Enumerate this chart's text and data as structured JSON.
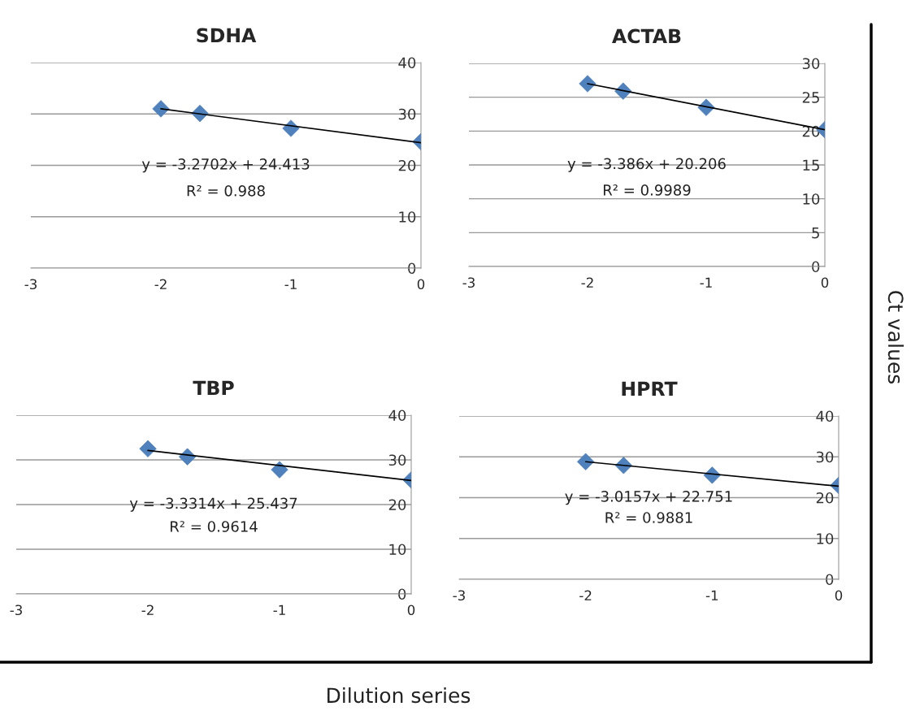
{
  "chart_data": [
    {
      "type": "scatter",
      "title": "SDHA",
      "xlim": [
        -3,
        0
      ],
      "xticks": [
        -3,
        -2,
        -1,
        0
      ],
      "ylim": [
        0,
        40
      ],
      "yticks": [
        0,
        10,
        20,
        30,
        40
      ],
      "grid": "y",
      "marker": "diamond",
      "annotations": [
        "y = -3.2702x + 24.413",
        "R² = 0.988"
      ],
      "series": [
        {
          "color": "#4f81bd",
          "x": [
            -2,
            -1.7,
            -1,
            0
          ],
          "values": [
            31.0,
            30.1,
            27.2,
            24.6
          ]
        },
        {
          "type": "line",
          "color": "#000000",
          "marker": "none",
          "x": [
            -2,
            0
          ],
          "values": [
            31.0,
            24.4
          ]
        }
      ]
    },
    {
      "type": "scatter",
      "title": "ACTAB",
      "xlim": [
        -3,
        0
      ],
      "xticks": [
        -3,
        -2,
        -1,
        0
      ],
      "ylim": [
        0,
        30
      ],
      "yticks": [
        0,
        5,
        10,
        15,
        20,
        25,
        30
      ],
      "grid": "y",
      "marker": "diamond",
      "annotations": [
        "y = -3.386x + 20.206",
        "R² = 0.9989"
      ],
      "series": [
        {
          "color": "#4f81bd",
          "x": [
            -2,
            -1.7,
            -1,
            0
          ],
          "values": [
            27.0,
            25.9,
            23.5,
            20.2
          ]
        },
        {
          "type": "line",
          "color": "#000000",
          "marker": "none",
          "x": [
            -2,
            0
          ],
          "values": [
            27.0,
            20.2
          ]
        }
      ]
    },
    {
      "type": "scatter",
      "title": "TBP",
      "xlim": [
        -3,
        0
      ],
      "xticks": [
        -3,
        -2,
        -1,
        0
      ],
      "ylim": [
        0,
        40
      ],
      "yticks": [
        0,
        10,
        20,
        30,
        40
      ],
      "grid": "y",
      "marker": "diamond",
      "annotations": [
        "y = -3.3314x + 25.437",
        "R² = 0.9614"
      ],
      "series": [
        {
          "color": "#4f81bd",
          "x": [
            -2,
            -1.7,
            -1,
            0
          ],
          "values": [
            32.5,
            30.7,
            27.8,
            25.5
          ]
        },
        {
          "type": "line",
          "color": "#000000",
          "marker": "none",
          "x": [
            -2,
            0
          ],
          "values": [
            32.1,
            25.4
          ]
        }
      ]
    },
    {
      "type": "scatter",
      "title": "HPRT",
      "xlabel": "Dilution series",
      "ylabel": "Ct values",
      "xlim": [
        -3,
        0
      ],
      "xticks": [
        -3,
        -2,
        -1,
        0
      ],
      "ylim": [
        0,
        40
      ],
      "yticks": [
        0,
        10,
        20,
        30,
        40
      ],
      "grid": "y",
      "marker": "diamond",
      "annotations": [
        "y = -3.0157x + 22.751",
        "R² = 0.9881"
      ],
      "series": [
        {
          "color": "#4f81bd",
          "x": [
            -2,
            -1.7,
            -1,
            0
          ],
          "values": [
            28.8,
            27.9,
            25.5,
            23.0
          ]
        },
        {
          "type": "line",
          "color": "#000000",
          "marker": "none",
          "x": [
            -2,
            0
          ],
          "values": [
            28.8,
            22.8
          ]
        }
      ]
    }
  ]
}
